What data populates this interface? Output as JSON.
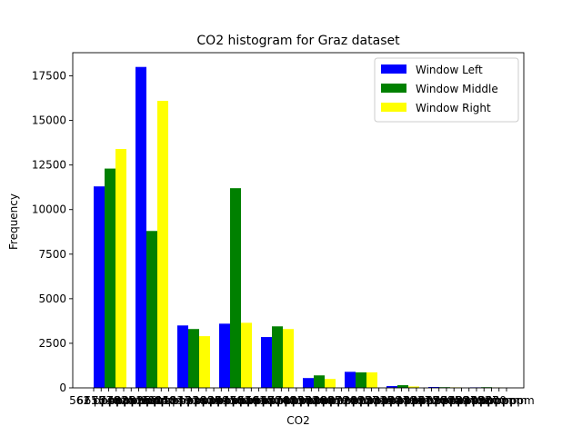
{
  "chart_data": {
    "type": "bar",
    "title": "CO2 histogram for Graz dataset",
    "xlabel": "CO2",
    "ylabel": "Frequency",
    "ylim": [
      0,
      18800
    ],
    "yticks": [
      0,
      2500,
      5000,
      7500,
      10000,
      12500,
      15000,
      17500
    ],
    "ytick_labels": [
      "0",
      "2500",
      "5000",
      "7500",
      "10000",
      "12500",
      "15000",
      "17500"
    ],
    "legend_position": "top-right",
    "bins": 10,
    "series": [
      {
        "name": "Window Left",
        "color": "#0000ff",
        "values": [
          11300,
          18000,
          3500,
          3600,
          2850,
          550,
          900,
          100,
          50,
          30
        ]
      },
      {
        "name": "Window Middle",
        "color": "#008000",
        "values": [
          12300,
          8800,
          3300,
          11200,
          3450,
          700,
          870,
          150,
          40,
          40
        ]
      },
      {
        "name": "Window Right",
        "color": "#ffff00",
        "values": [
          13400,
          16100,
          2900,
          3650,
          3300,
          500,
          870,
          80,
          30,
          20
        ]
      }
    ],
    "x_tick_labels": [
      "562 ppm",
      "611 ppm",
      "655 ppm",
      "703 ppm",
      "748 ppm",
      "792 ppm",
      "835 ppm",
      "881 ppm",
      "925 ppm",
      "969 ppm",
      "1014 ppm",
      "1058 ppm",
      "1103 ppm",
      "1147 ppm",
      "1191 ppm",
      "1236 ppm",
      "1280 ppm",
      "1325 ppm",
      "1369 ppm",
      "1413 ppm",
      "1458 ppm",
      "1502 ppm",
      "1546 ppm",
      "1591 ppm",
      "1635 ppm",
      "1680 ppm",
      "1724 ppm",
      "1768 ppm",
      "1813 ppm",
      "1857 ppm",
      "1902 ppm",
      "1946 ppm",
      "1990 ppm",
      "2035 ppm",
      "2079 ppm",
      "2124 ppm",
      "2168 ppm",
      "2212 ppm",
      "2257 ppm",
      "2301 ppm",
      "2345 ppm",
      "2390 ppm",
      "2434 ppm",
      "2479 ppm",
      "2523 ppm",
      "2567 ppm",
      "2612 ppm",
      "2656 ppm",
      "2700 ppm",
      "2745 ppm",
      "2789 ppm",
      "2834 ppm",
      "2878 ppm",
      "2922 ppm",
      "2967 ppm",
      "3000 ppm"
    ]
  }
}
